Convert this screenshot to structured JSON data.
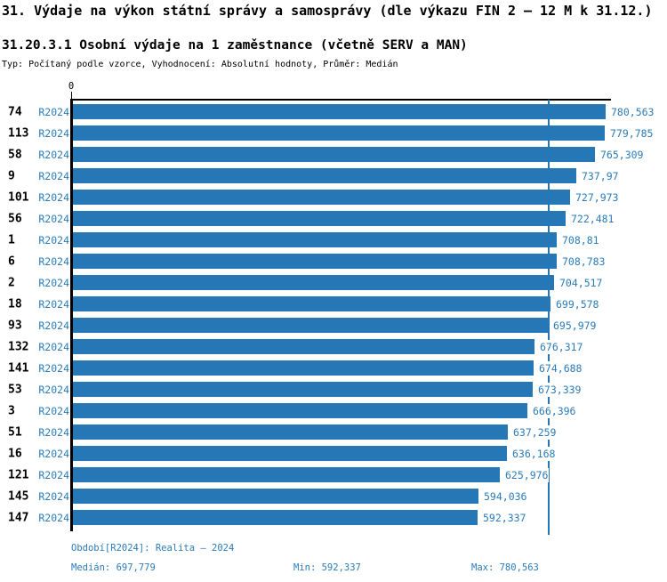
{
  "title": "31. Výdaje na výkon státní správy a samosprávy (dle výkazu FIN 2 – 12 M k 31.12.)",
  "subtitle": "31.20.3.1 Osobní výdaje na 1 zaměstnance (včetně SERV a MAN)",
  "meta": "Typ: Počítaný podle vzorce, Vyhodnocení: Absolutní hodnoty, Průměr: Medián",
  "colors": {
    "bar": "#2577B5",
    "blue_text": "#2B7BB9",
    "axis": "#000000"
  },
  "chart_data": {
    "type": "bar",
    "orientation": "horizontal",
    "title": "31.20.3.1 Osobní výdaje na 1 zaměstnance (včetně SERV a MAN)",
    "series_label": "R2024",
    "x_axis": {
      "zero_label": "0",
      "min": 0,
      "max": 780.563
    },
    "median_value": 697.779,
    "grid": false,
    "rows": [
      {
        "id": "74",
        "period": "R2024",
        "value": 780.563,
        "label": "780,563"
      },
      {
        "id": "113",
        "period": "R2024",
        "value": 779.785,
        "label": "779,785"
      },
      {
        "id": "58",
        "period": "R2024",
        "value": 765.309,
        "label": "765,309"
      },
      {
        "id": "9",
        "period": "R2024",
        "value": 737.97,
        "label": "737,97"
      },
      {
        "id": "101",
        "period": "R2024",
        "value": 727.973,
        "label": "727,973"
      },
      {
        "id": "56",
        "period": "R2024",
        "value": 722.481,
        "label": "722,481"
      },
      {
        "id": "1",
        "period": "R2024",
        "value": 708.81,
        "label": "708,81"
      },
      {
        "id": "6",
        "period": "R2024",
        "value": 708.783,
        "label": "708,783"
      },
      {
        "id": "2",
        "period": "R2024",
        "value": 704.517,
        "label": "704,517"
      },
      {
        "id": "18",
        "period": "R2024",
        "value": 699.578,
        "label": "699,578"
      },
      {
        "id": "93",
        "period": "R2024",
        "value": 695.979,
        "label": "695,979"
      },
      {
        "id": "132",
        "period": "R2024",
        "value": 676.317,
        "label": "676,317"
      },
      {
        "id": "141",
        "period": "R2024",
        "value": 674.688,
        "label": "674,688"
      },
      {
        "id": "53",
        "period": "R2024",
        "value": 673.339,
        "label": "673,339"
      },
      {
        "id": "3",
        "period": "R2024",
        "value": 666.396,
        "label": "666,396"
      },
      {
        "id": "51",
        "period": "R2024",
        "value": 637.259,
        "label": "637,259"
      },
      {
        "id": "16",
        "period": "R2024",
        "value": 636.168,
        "label": "636,168"
      },
      {
        "id": "121",
        "period": "R2024",
        "value": 625.976,
        "label": "625,976"
      },
      {
        "id": "145",
        "period": "R2024",
        "value": 594.036,
        "label": "594,036"
      },
      {
        "id": "147",
        "period": "R2024",
        "value": 592.337,
        "label": "592,337"
      }
    ]
  },
  "footer": {
    "period_line": "Období[R2024]: Realita – 2024",
    "median_label": "Medián: 697,779",
    "min_label": "Min: 592,337",
    "max_label": "Max: 780,563"
  }
}
